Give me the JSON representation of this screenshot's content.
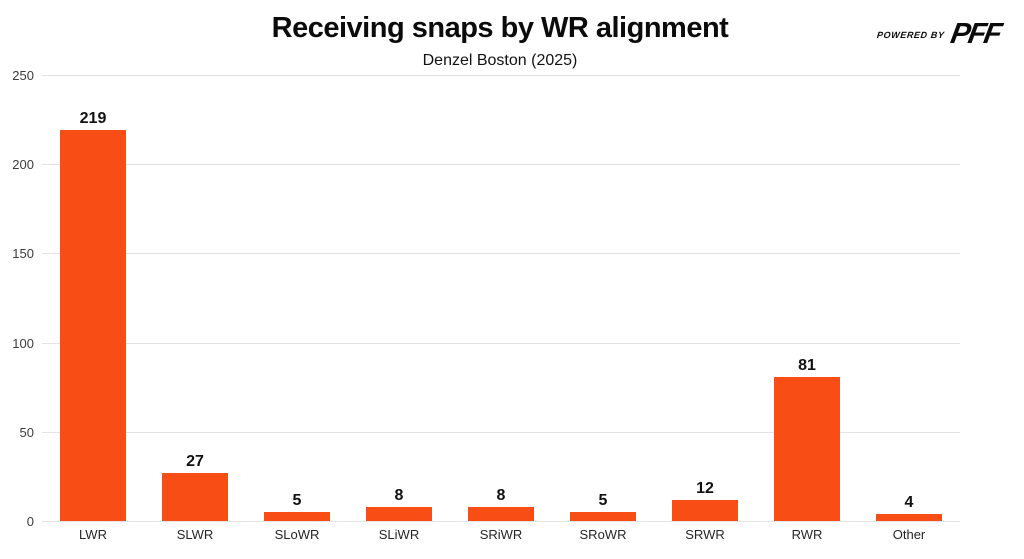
{
  "header": {
    "title": "Receiving snaps by WR alignment",
    "subtitle": "Denzel Boston (2025)",
    "logo": {
      "powered_by": "POWERED BY",
      "brand": "PFF"
    }
  },
  "chart_data": {
    "type": "bar",
    "title": "Receiving snaps by WR alignment",
    "subtitle": "Denzel Boston (2025)",
    "categories": [
      "LWR",
      "SLWR",
      "SLoWR",
      "SLiWR",
      "SRiWR",
      "SRoWR",
      "SRWR",
      "RWR",
      "Other"
    ],
    "values": [
      219,
      27,
      5,
      8,
      8,
      5,
      12,
      81,
      4
    ],
    "xlabel": "",
    "ylabel": "",
    "ylim": [
      0,
      250
    ],
    "yticks": [
      0,
      50,
      100,
      150,
      200,
      250
    ],
    "grid": true,
    "legend": "none",
    "value_labels_shown": true
  },
  "colors": {
    "bar": "#F84E15",
    "grid": "#e3e3e3",
    "axis_text": "#3c3c3c",
    "title_text": "#0b0b0b",
    "background": "#ffffff"
  }
}
